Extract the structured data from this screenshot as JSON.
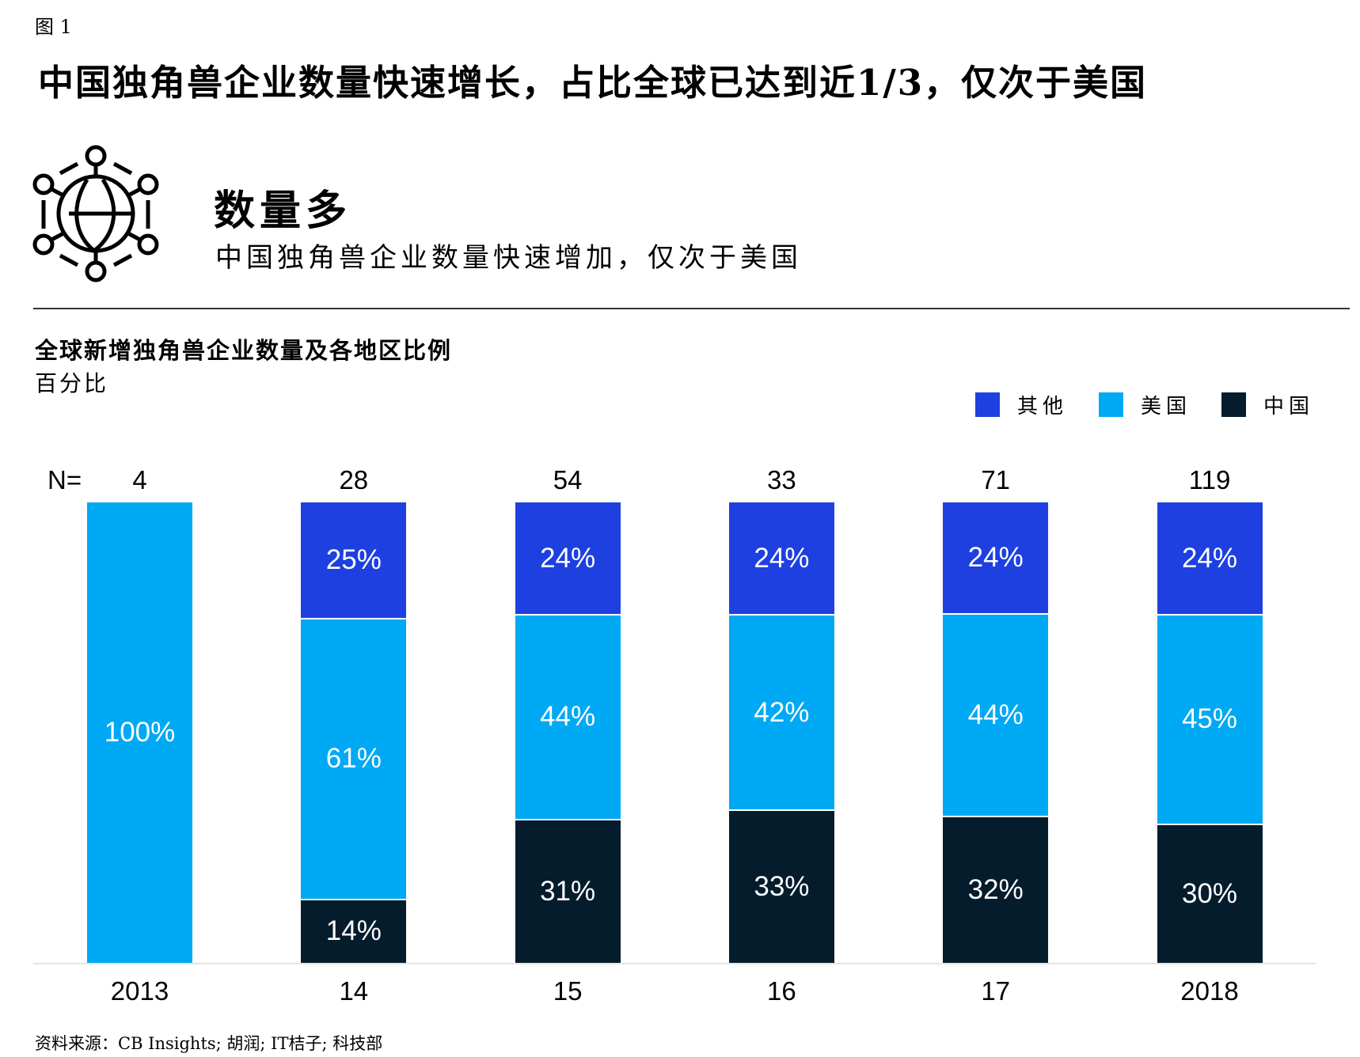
{
  "figure_label": "图 1",
  "headline": "中国独角兽企业数量快速增长，占比全球已达到近1/3，仅次于美国",
  "section": {
    "icon": "globe-network-icon",
    "title": "数量多",
    "subtitle": "中国独角兽企业数量快速增加，仅次于美国"
  },
  "chart_data": {
    "type": "bar",
    "stacked": true,
    "percent_stacked": true,
    "title": "全球新增独角兽企业数量及各地区比例",
    "ylabel": "百分比",
    "n_prefix": "N=",
    "categories": [
      "2013",
      "14",
      "15",
      "16",
      "17",
      "2018"
    ],
    "n_values": [
      "4",
      "28",
      "54",
      "33",
      "71",
      "119"
    ],
    "legend_position": "top-right",
    "grid": false,
    "series": [
      {
        "name": "中国",
        "color": "#051c2c",
        "values": [
          0,
          14,
          31,
          33,
          32,
          30
        ],
        "labels": [
          "",
          "14%",
          "31%",
          "33%",
          "32%",
          "30%"
        ]
      },
      {
        "name": "美国",
        "color": "#00a9f4",
        "values": [
          100,
          61,
          44,
          42,
          44,
          45
        ],
        "labels": [
          "100%",
          "61%",
          "44%",
          "42%",
          "44%",
          "45%"
        ]
      },
      {
        "name": "其他",
        "color": "#1f40e0",
        "values": [
          0,
          25,
          24,
          24,
          24,
          24
        ],
        "labels": [
          "",
          "25%",
          "24%",
          "24%",
          "24%",
          "24%"
        ]
      }
    ],
    "legend_order": [
      "其他",
      "美国",
      "中国"
    ]
  },
  "source": "资料来源：CB Insights; 胡润; IT桔子; 科技部"
}
